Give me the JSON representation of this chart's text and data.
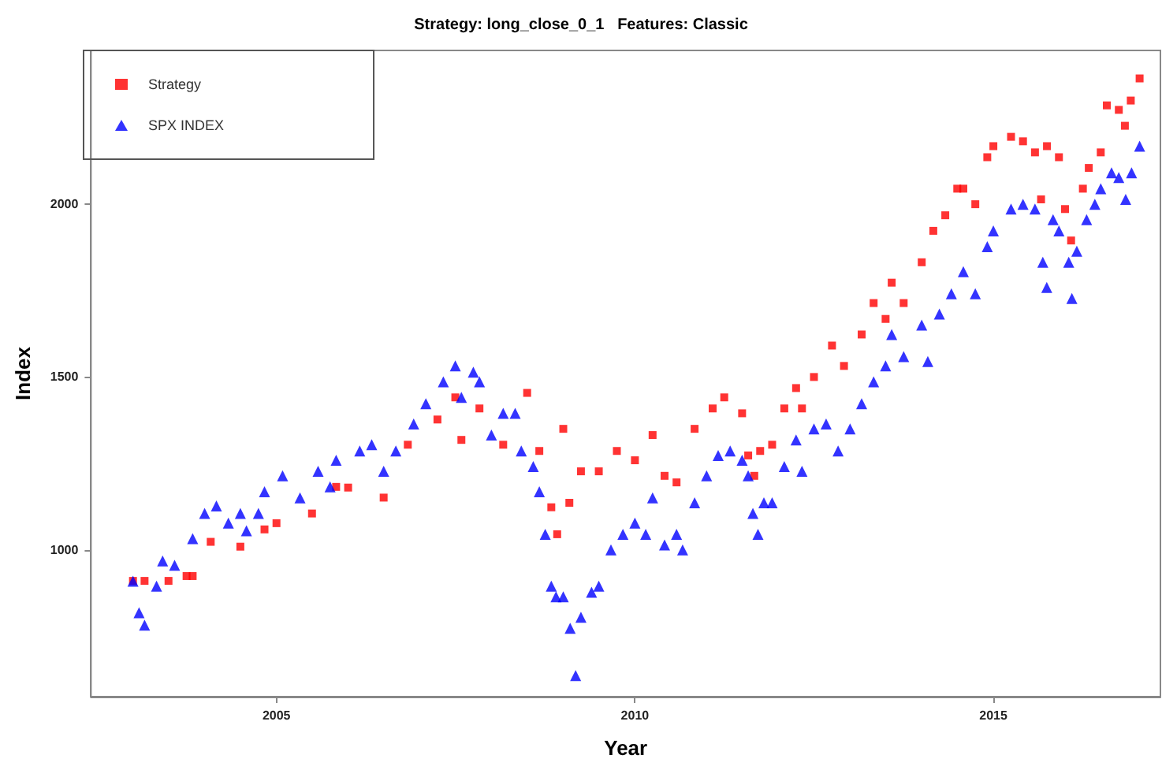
{
  "chart_data": {
    "type": "scatter",
    "title": "Strategy: long_close_0_1   Features: Classic",
    "xlabel": "Year",
    "ylabel": "Index",
    "xlim": [
      "2002-06",
      "2017-05"
    ],
    "xticks": [
      "2005",
      "2010",
      "2015"
    ],
    "ylim": [
      575,
      2445
    ],
    "yticks": [
      1000,
      1500,
      2000
    ],
    "grid": false,
    "legend": "top left",
    "series": [
      {
        "name": "Strategy",
        "color": "#ff0000",
        "marker": "square",
        "x": [
          "2003-01",
          "2003-03",
          "2003-07",
          "2003-10",
          "2003-11",
          "2004-02",
          "2004-07",
          "2004-11",
          "2005-01",
          "2005-07",
          "2005-11",
          "2006-01",
          "2006-07",
          "2006-11",
          "2007-04",
          "2007-07",
          "2007-08",
          "2007-11",
          "2008-03",
          "2008-07",
          "2008-09",
          "2008-11",
          "2008-12",
          "2009-01",
          "2009-02",
          "2009-04",
          "2009-07",
          "2009-10",
          "2010-01",
          "2010-04",
          "2010-06",
          "2010-08",
          "2010-11",
          "2011-02",
          "2011-04",
          "2011-07",
          "2011-08",
          "2011-09",
          "2011-10",
          "2011-12",
          "2012-02",
          "2012-04",
          "2012-05",
          "2012-07",
          "2012-10",
          "2012-12",
          "2013-03",
          "2013-05",
          "2013-07",
          "2013-08",
          "2013-10",
          "2014-01",
          "2014-03",
          "2014-05",
          "2014-07",
          "2014-08",
          "2014-10",
          "2014-12",
          "2015-01",
          "2015-04",
          "2015-06",
          "2015-08",
          "2015-09",
          "2015-10",
          "2015-12",
          "2016-01",
          "2016-02",
          "2016-04",
          "2016-05",
          "2016-07",
          "2016-08",
          "2016-10",
          "2016-11",
          "2016-12",
          "2017-01-15"
        ],
        "values": [
          910,
          910,
          910,
          924,
          924,
          1023,
          1009,
          1059,
          1077,
          1105,
          1182,
          1180,
          1151,
          1304,
          1377,
          1441,
          1318,
          1409,
          1304,
          1454,
          1286,
          1123,
          1045,
          1350,
          1136,
          1227,
          1227,
          1286,
          1259,
          1332,
          1214,
          1195,
          1350,
          1409,
          1441,
          1395,
          1273,
          1214,
          1286,
          1304,
          1409,
          1468,
          1409,
          1500,
          1591,
          1532,
          1623,
          1714,
          1668,
          1773,
          1714,
          1832,
          1923,
          1968,
          2045,
          2045,
          2000,
          2136,
          2168,
          2195,
          2182,
          2150,
          2014,
          2168,
          2136,
          1986,
          1895,
          2045,
          2105,
          2150,
          2286,
          2273,
          2227,
          2300,
          2364
        ]
      },
      {
        "name": "SPX INDEX",
        "color": "#0000ff",
        "marker": "triangle",
        "x": [
          "2003-01",
          "2003-02",
          "2003-03",
          "2003-05",
          "2003-06",
          "2003-08",
          "2003-11",
          "2004-01",
          "2004-03",
          "2004-05",
          "2004-07",
          "2004-08",
          "2004-10",
          "2004-11",
          "2005-02",
          "2005-05",
          "2005-08",
          "2005-10",
          "2005-11",
          "2006-03",
          "2006-05",
          "2006-07",
          "2006-09",
          "2006-12",
          "2007-02",
          "2007-05",
          "2007-07",
          "2007-08",
          "2007-10",
          "2007-11",
          "2008-01",
          "2008-03",
          "2008-05",
          "2008-06",
          "2008-08",
          "2008-09",
          "2008-10",
          "2008-11-01",
          "2008-11-25",
          "2009-01-01",
          "2009-02-05",
          "2009-03-05",
          "2009-04",
          "2009-05-25",
          "2009-07",
          "2009-09",
          "2009-11",
          "2010-01",
          "2010-02-25",
          "2010-04",
          "2010-06",
          "2010-08",
          "2010-09",
          "2010-11",
          "2011-01",
          "2011-03",
          "2011-05",
          "2011-07",
          "2011-08-01",
          "2011-08-25",
          "2011-09-20",
          "2011-10-20",
          "2011-12",
          "2012-02",
          "2012-04",
          "2012-05",
          "2012-07",
          "2012-09",
          "2012-11",
          "2013-01",
          "2013-03",
          "2013-05",
          "2013-07",
          "2013-08",
          "2013-10",
          "2014-01",
          "2014-02",
          "2014-04",
          "2014-06",
          "2014-08",
          "2014-10",
          "2014-12",
          "2015-01",
          "2015-04",
          "2015-06",
          "2015-08-01",
          "2015-09-10",
          "2015-09-30",
          "2015-11",
          "2015-12",
          "2016-01-20",
          "2016-02-05",
          "2016-03",
          "2016-04-20",
          "2016-06",
          "2016-07",
          "2016-08-25",
          "2016-10",
          "2016-11-05",
          "2016-12-05",
          "2017-01-15"
        ],
        "values": [
          909,
          818,
          782,
          895,
          968,
          955,
          1032,
          1105,
          1127,
          1077,
          1105,
          1055,
          1105,
          1168,
          1214,
          1150,
          1227,
          1182,
          1259,
          1286,
          1304,
          1227,
          1286,
          1364,
          1423,
          1486,
          1532,
          1441,
          1514,
          1486,
          1332,
          1395,
          1395,
          1286,
          1241,
          1168,
          1045,
          895,
          864,
          864,
          773,
          636,
          805,
          877,
          895,
          1000,
          1045,
          1077,
          1045,
          1150,
          1014,
          1045,
          1000,
          1136,
          1214,
          1273,
          1286,
          1259,
          1214,
          1105,
          1045,
          1136,
          1136,
          1241,
          1318,
          1227,
          1350,
          1364,
          1286,
          1350,
          1423,
          1486,
          1532,
          1623,
          1559,
          1650,
          1545,
          1682,
          1741,
          1805,
          1741,
          1877,
          1923,
          1986,
          2000,
          1986,
          1832,
          1759,
          1955,
          1923,
          1832,
          1727,
          1864,
          1955,
          2000,
          2045,
          2091,
          2077,
          2014,
          2091,
          2168
        ]
      }
    ]
  }
}
